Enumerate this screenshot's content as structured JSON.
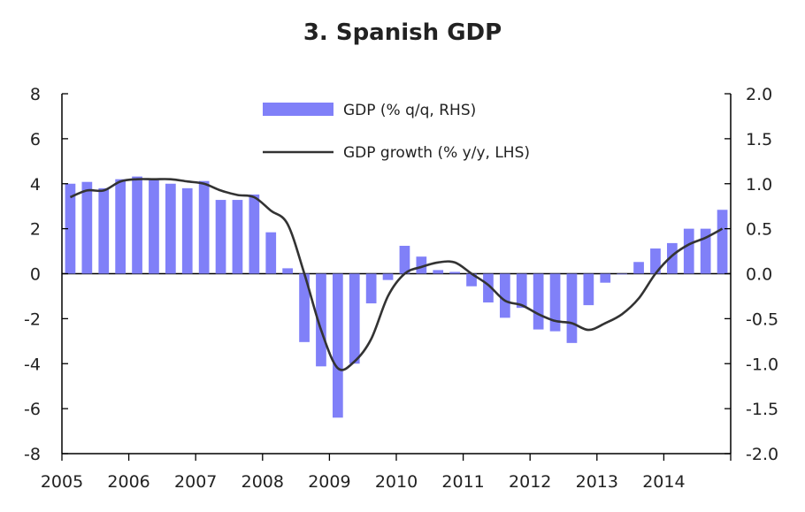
{
  "chart_data": {
    "type": "bar+line",
    "title": "3. Spanish GDP",
    "colors": {
      "bar": "#8080f8",
      "line": "#333333",
      "axis": "#000000"
    },
    "left_axis": {
      "ylim": [
        -8,
        8
      ],
      "ticks": [
        "8",
        "6",
        "4",
        "2",
        "0",
        "-2",
        "-4",
        "-6",
        "-8"
      ]
    },
    "right_axis": {
      "ylim": [
        -2.0,
        2.0
      ],
      "ticks": [
        "2.0",
        "1.5",
        "1.0",
        "0.5",
        "0.0",
        "-0.5",
        "-1.0",
        "-1.5",
        "-2.0"
      ]
    },
    "x_axis": {
      "range": [
        2005.0,
        2015.0
      ],
      "tick_labels": [
        "2005",
        "2006",
        "2007",
        "2008",
        "2009",
        "2010",
        "2011",
        "2012",
        "2013",
        "2014"
      ]
    },
    "legend": {
      "position": "top-center",
      "bar_label": "GDP (% q/q, RHS)",
      "line_label": "GDP growth (% y/y, LHS)"
    },
    "series": [
      {
        "name": "GDP (% q/q, RHS)",
        "type": "bar",
        "axis": "right",
        "x": [
          2005.125,
          2005.375,
          2005.625,
          2005.875,
          2006.125,
          2006.375,
          2006.625,
          2006.875,
          2007.125,
          2007.375,
          2007.625,
          2007.875,
          2008.125,
          2008.375,
          2008.625,
          2008.875,
          2009.125,
          2009.375,
          2009.625,
          2009.875,
          2010.125,
          2010.375,
          2010.625,
          2010.875,
          2011.125,
          2011.375,
          2011.625,
          2011.875,
          2012.125,
          2012.375,
          2012.625,
          2012.875,
          2013.125,
          2013.375,
          2013.625,
          2013.875,
          2014.125,
          2014.375,
          2014.625,
          2014.875
        ],
        "values": [
          1.0,
          1.02,
          0.95,
          1.05,
          1.08,
          1.04,
          1.0,
          0.95,
          1.03,
          0.82,
          0.82,
          0.88,
          0.46,
          0.06,
          -0.76,
          -1.03,
          -1.6,
          -1.0,
          -0.33,
          -0.07,
          0.31,
          0.19,
          0.04,
          0.02,
          -0.14,
          -0.32,
          -0.49,
          -0.38,
          -0.62,
          -0.64,
          -0.77,
          -0.35,
          -0.1,
          0.0,
          0.13,
          0.28,
          0.34,
          0.5,
          0.5,
          0.71
        ]
      },
      {
        "name": "GDP growth (% y/y, LHS)",
        "type": "line",
        "axis": "left",
        "x": [
          2005.125,
          2005.375,
          2005.625,
          2005.875,
          2006.125,
          2006.375,
          2006.625,
          2006.875,
          2007.125,
          2007.375,
          2007.625,
          2007.875,
          2008.125,
          2008.375,
          2008.625,
          2008.875,
          2009.125,
          2009.375,
          2009.625,
          2009.875,
          2010.125,
          2010.375,
          2010.625,
          2010.875,
          2011.125,
          2011.375,
          2011.625,
          2011.875,
          2012.125,
          2012.375,
          2012.625,
          2012.875,
          2013.125,
          2013.375,
          2013.625,
          2013.875,
          2014.125,
          2014.375,
          2014.625,
          2014.875
        ],
        "values": [
          3.4,
          3.7,
          3.7,
          4.1,
          4.2,
          4.2,
          4.2,
          4.1,
          4.0,
          3.7,
          3.5,
          3.4,
          2.8,
          2.2,
          0.0,
          -2.5,
          -4.2,
          -3.9,
          -2.9,
          -1.0,
          0.0,
          0.3,
          0.5,
          0.5,
          0.0,
          -0.5,
          -1.2,
          -1.4,
          -1.8,
          -2.1,
          -2.2,
          -2.5,
          -2.2,
          -1.8,
          -1.1,
          0.0,
          0.8,
          1.3,
          1.6,
          2.0
        ]
      }
    ]
  }
}
